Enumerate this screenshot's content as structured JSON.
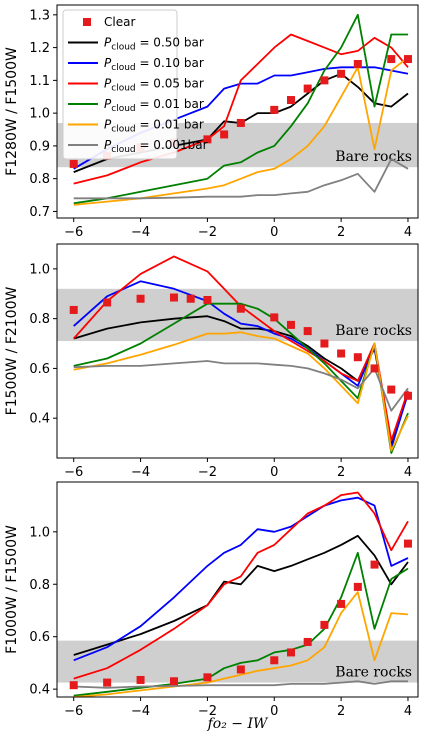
{
  "chart_data": [
    {
      "type": "line",
      "ylabel": "F1280W / F1500W",
      "xlabel": "",
      "xlim": [
        -6.5,
        4.3
      ],
      "ylim": [
        0.68,
        1.33
      ],
      "xticks": [
        -6,
        -4,
        -2,
        0,
        2,
        4
      ],
      "yticks": [
        0.7,
        0.8,
        0.9,
        1.0,
        1.1,
        1.2,
        1.3
      ],
      "ytick_labels": [
        "0.7",
        "0.8",
        "0.9",
        "1.0",
        "1.1",
        "1.2",
        "1.3"
      ],
      "xtick_labels": [
        "−6",
        "−4",
        "−2",
        "0",
        "2",
        "4"
      ],
      "band": {
        "y": [
          0.835,
          0.97
        ],
        "label": "Bare rocks",
        "color": "#cfcfcf"
      },
      "legend": {
        "placement": "upper-left"
      },
      "x": [
        -6,
        -5,
        -4,
        -3,
        -2,
        -1.5,
        -1,
        -0.5,
        0,
        0.5,
        1,
        1.5,
        2,
        2.5,
        3,
        3.5,
        4
      ],
      "series": [
        {
          "name": "Clear",
          "kind": "marker",
          "color": "#e41a1c",
          "x": [
            -6,
            -5,
            -4,
            -3,
            -2,
            -1.5,
            -1,
            0,
            0.5,
            1,
            1.5,
            2,
            2.5,
            3.5,
            4
          ],
          "values": [
            0.845,
            0.87,
            0.895,
            0.91,
            0.92,
            0.935,
            0.97,
            1.01,
            1.04,
            1.075,
            1.1,
            1.12,
            1.15,
            1.165,
            1.165
          ]
        },
        {
          "name": "P_cloud = 0.50 bar",
          "color": "#000000",
          "values": [
            0.82,
            0.86,
            0.88,
            0.9,
            0.92,
            0.975,
            0.97,
            1.0,
            1.0,
            1.02,
            1.06,
            1.1,
            1.12,
            1.08,
            1.03,
            1.02,
            1.06
          ]
        },
        {
          "name": "P_cloud = 0.10 bar",
          "color": "#0000ff",
          "values": [
            0.83,
            0.89,
            0.94,
            0.98,
            1.02,
            1.075,
            1.09,
            1.09,
            1.115,
            1.115,
            1.125,
            1.135,
            1.14,
            1.14,
            1.14,
            1.13,
            1.12
          ]
        },
        {
          "name": "P_cloud = 0.05 bar",
          "color": "#ff0000",
          "values": [
            0.785,
            0.81,
            0.85,
            0.88,
            0.92,
            0.96,
            1.1,
            1.15,
            1.2,
            1.24,
            1.22,
            1.2,
            1.18,
            1.19,
            1.23,
            1.2,
            1.14
          ]
        },
        {
          "name": "P_cloud = 0.01 bar",
          "color": "#008000",
          "values": [
            0.725,
            0.74,
            0.76,
            0.78,
            0.8,
            0.84,
            0.85,
            0.88,
            0.9,
            0.96,
            1.03,
            1.13,
            1.2,
            1.3,
            1.02,
            1.24,
            1.24
          ]
        },
        {
          "name": "P_cloud = 0.01 bar",
          "color": "#ffa500",
          "values": [
            0.72,
            0.73,
            0.74,
            0.755,
            0.77,
            0.78,
            0.8,
            0.82,
            0.83,
            0.86,
            0.9,
            0.96,
            1.05,
            1.14,
            0.89,
            1.13,
            1.17
          ]
        },
        {
          "name": "P_cloud = 0.001bar",
          "color": "#808080",
          "values": [
            0.74,
            0.74,
            0.74,
            0.742,
            0.745,
            0.745,
            0.745,
            0.75,
            0.75,
            0.755,
            0.76,
            0.78,
            0.795,
            0.815,
            0.76,
            0.86,
            0.83
          ]
        }
      ]
    },
    {
      "type": "line",
      "ylabel": "F1500W / F2100W",
      "xlabel": "",
      "xlim": [
        -6.5,
        4.3
      ],
      "ylim": [
        0.24,
        1.1
      ],
      "xticks": [
        -6,
        -4,
        -2,
        0,
        2,
        4
      ],
      "yticks": [
        0.4,
        0.6,
        0.8,
        1.0
      ],
      "ytick_labels": [
        "0.4",
        "0.6",
        "0.8",
        "1.0"
      ],
      "xtick_labels": [
        "−6",
        "−4",
        "−2",
        "0",
        "2",
        "4"
      ],
      "band": {
        "y": [
          0.71,
          0.92
        ],
        "label": "Bare rocks",
        "color": "#cfcfcf"
      },
      "x": [
        -6,
        -5,
        -4,
        -3,
        -2,
        -1.5,
        -1,
        -0.5,
        0,
        0.5,
        1,
        1.5,
        2,
        2.5,
        3,
        3.5,
        4
      ],
      "series": [
        {
          "name": "Clear",
          "kind": "marker",
          "color": "#e41a1c",
          "x": [
            -6,
            -5,
            -4,
            -3,
            -2.5,
            -2,
            -1,
            0,
            0.5,
            1,
            1.5,
            2,
            2.5,
            3,
            3.5,
            4
          ],
          "values": [
            0.835,
            0.865,
            0.88,
            0.885,
            0.88,
            0.875,
            0.84,
            0.805,
            0.775,
            0.75,
            0.7,
            0.66,
            0.645,
            0.6,
            0.515,
            0.49
          ]
        },
        {
          "name": "P_cloud = 0.50 bar",
          "color": "#000000",
          "values": [
            0.72,
            0.76,
            0.785,
            0.8,
            0.81,
            0.79,
            0.76,
            0.76,
            0.75,
            0.73,
            0.69,
            0.64,
            0.6,
            0.55,
            0.68,
            0.3,
            0.5
          ]
        },
        {
          "name": "P_cloud = 0.10 bar",
          "color": "#0000ff",
          "values": [
            0.77,
            0.89,
            0.95,
            0.92,
            0.87,
            0.82,
            0.78,
            0.77,
            0.74,
            0.72,
            0.68,
            0.63,
            0.58,
            0.53,
            0.69,
            0.28,
            0.5
          ]
        },
        {
          "name": "P_cloud = 0.05 bar",
          "color": "#ff0000",
          "values": [
            0.72,
            0.87,
            0.98,
            1.05,
            0.99,
            0.92,
            0.85,
            0.8,
            0.75,
            0.71,
            0.67,
            0.63,
            0.58,
            0.55,
            0.7,
            0.31,
            0.51
          ]
        },
        {
          "name": "P_cloud = 0.01 bar",
          "color": "#008000",
          "values": [
            0.61,
            0.64,
            0.7,
            0.78,
            0.86,
            0.86,
            0.86,
            0.84,
            0.8,
            0.74,
            0.68,
            0.62,
            0.55,
            0.48,
            0.7,
            0.26,
            0.42
          ]
        },
        {
          "name": "P_cloud = 0.01 bar",
          "color": "#ffa500",
          "values": [
            0.595,
            0.62,
            0.655,
            0.695,
            0.74,
            0.74,
            0.745,
            0.73,
            0.72,
            0.69,
            0.66,
            0.6,
            0.53,
            0.46,
            0.7,
            0.27,
            0.41
          ]
        },
        {
          "name": "P_cloud = 0.001bar",
          "color": "#808080",
          "values": [
            0.605,
            0.61,
            0.61,
            0.62,
            0.63,
            0.62,
            0.62,
            0.62,
            0.615,
            0.61,
            0.6,
            0.58,
            0.555,
            0.52,
            0.6,
            0.43,
            0.52
          ]
        }
      ]
    },
    {
      "type": "line",
      "ylabel": "F1000W / F1500W",
      "xlabel": "fo₂ − IW",
      "xlim": [
        -6.5,
        4.3
      ],
      "ylim": [
        0.37,
        1.19
      ],
      "xticks": [
        -6,
        -4,
        -2,
        0,
        2,
        4
      ],
      "yticks": [
        0.4,
        0.6,
        0.8,
        1.0
      ],
      "ytick_labels": [
        "0.4",
        "0.6",
        "0.8",
        "1.0"
      ],
      "xtick_labels": [
        "−6",
        "−4",
        "−2",
        "0",
        "2",
        "4"
      ],
      "band": {
        "y": [
          0.425,
          0.585
        ],
        "label": "Bare rocks",
        "color": "#cfcfcf"
      },
      "x": [
        -6,
        -5,
        -4,
        -3,
        -2,
        -1.5,
        -1,
        -0.5,
        0,
        0.5,
        1,
        1.5,
        2,
        2.5,
        3,
        3.5,
        4
      ],
      "series": [
        {
          "name": "Clear",
          "kind": "marker",
          "color": "#e41a1c",
          "x": [
            -6,
            -5,
            -4,
            -3,
            -2,
            -1,
            0,
            0.5,
            1,
            1.5,
            2,
            2.5,
            3,
            4
          ],
          "values": [
            0.415,
            0.425,
            0.435,
            0.43,
            0.445,
            0.475,
            0.51,
            0.54,
            0.58,
            0.645,
            0.725,
            0.79,
            0.875,
            0.955
          ]
        },
        {
          "name": "P_cloud = 0.50 bar",
          "color": "#000000",
          "values": [
            0.53,
            0.57,
            0.61,
            0.66,
            0.72,
            0.81,
            0.8,
            0.87,
            0.85,
            0.87,
            0.895,
            0.92,
            0.95,
            0.985,
            0.91,
            0.8,
            0.885
          ]
        },
        {
          "name": "P_cloud = 0.10 bar",
          "color": "#0000ff",
          "values": [
            0.51,
            0.56,
            0.64,
            0.75,
            0.87,
            0.92,
            0.95,
            1.01,
            1.0,
            1.02,
            1.06,
            1.1,
            1.12,
            1.13,
            1.1,
            0.87,
            0.9
          ]
        },
        {
          "name": "P_cloud = 0.05 bar",
          "color": "#ff0000",
          "values": [
            0.44,
            0.48,
            0.55,
            0.63,
            0.72,
            0.8,
            0.83,
            0.92,
            0.95,
            1.01,
            1.07,
            1.1,
            1.14,
            1.15,
            1.07,
            0.93,
            1.04
          ]
        },
        {
          "name": "P_cloud = 0.01 bar",
          "color": "#008000",
          "values": [
            0.375,
            0.39,
            0.405,
            0.42,
            0.44,
            0.48,
            0.5,
            0.51,
            0.54,
            0.55,
            0.57,
            0.63,
            0.75,
            0.92,
            0.63,
            0.82,
            0.86
          ]
        },
        {
          "name": "P_cloud = 0.01 bar",
          "color": "#ffa500",
          "values": [
            0.37,
            0.38,
            0.395,
            0.41,
            0.425,
            0.44,
            0.455,
            0.47,
            0.48,
            0.49,
            0.51,
            0.56,
            0.69,
            0.77,
            0.51,
            0.69,
            0.685
          ]
        },
        {
          "name": "P_cloud = 0.001bar",
          "color": "#808080",
          "values": [
            0.41,
            0.405,
            0.41,
            0.412,
            0.415,
            0.415,
            0.415,
            0.415,
            0.415,
            0.42,
            0.42,
            0.42,
            0.425,
            0.43,
            0.42,
            0.43,
            0.43
          ]
        }
      ]
    }
  ],
  "legend": {
    "entries": [
      {
        "label": "Clear",
        "sub": "",
        "rest": "",
        "color": "#e41a1c",
        "kind": "marker"
      },
      {
        "label": "P",
        "sub": "cloud",
        "rest": " = 0.50 bar",
        "color": "#000000",
        "kind": "line"
      },
      {
        "label": "P",
        "sub": "cloud",
        "rest": " = 0.10 bar",
        "color": "#0000ff",
        "kind": "line"
      },
      {
        "label": "P",
        "sub": "cloud",
        "rest": " = 0.05 bar",
        "color": "#ff0000",
        "kind": "line"
      },
      {
        "label": "P",
        "sub": "cloud",
        "rest": " = 0.01 bar",
        "color": "#008000",
        "kind": "line"
      },
      {
        "label": "P",
        "sub": "cloud",
        "rest": " = 0.01 bar",
        "color": "#ffa500",
        "kind": "line"
      },
      {
        "label": "P",
        "sub": "cloud",
        "rest": " = 0.001bar",
        "color": "#808080",
        "kind": "line"
      }
    ]
  }
}
